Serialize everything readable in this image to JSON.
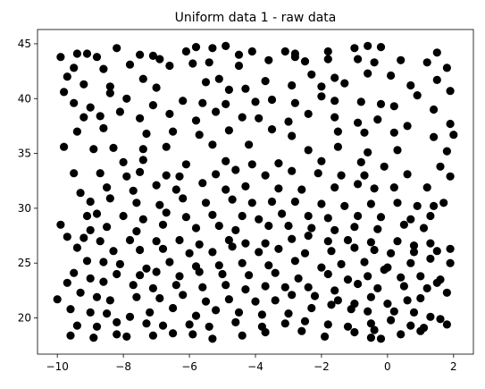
{
  "chart_data": {
    "type": "scatter",
    "title": "Uniform data 1 - raw data",
    "xlabel": "",
    "ylabel": "",
    "xlim": [
      -10.6,
      2.6
    ],
    "ylim": [
      16.7,
      46.3
    ],
    "x_ticks": [
      -10,
      -8,
      -6,
      -4,
      -2,
      0,
      2
    ],
    "x_tick_labels": [
      "−10",
      "−8",
      "−6",
      "−4",
      "−2",
      "0",
      "2"
    ],
    "y_ticks": [
      20,
      25,
      30,
      35,
      40,
      45
    ],
    "y_tick_labels": [
      "20",
      "25",
      "30",
      "35",
      "40",
      "45"
    ],
    "grid": false,
    "marker_color": "#000000",
    "points": [
      [
        -9.9,
        43.8
      ],
      [
        -9.4,
        44.1
      ],
      [
        -9.1,
        44.1
      ],
      [
        -8.8,
        43.8
      ],
      [
        -8.2,
        44.6
      ],
      [
        -7.5,
        44.0
      ],
      [
        -7.1,
        43.9
      ],
      [
        -6.9,
        43.6
      ],
      [
        -6.1,
        44.3
      ],
      [
        -5.8,
        44.7
      ],
      [
        -5.3,
        44.6
      ],
      [
        -4.9,
        44.8
      ],
      [
        -4.5,
        44.0
      ],
      [
        -4.1,
        44.3
      ],
      [
        -3.1,
        44.3
      ],
      [
        -2.8,
        44.1
      ],
      [
        -1.8,
        44.3
      ],
      [
        -1.0,
        44.6
      ],
      [
        -0.6,
        44.8
      ],
      [
        -0.2,
        44.7
      ],
      [
        1.5,
        44.2
      ],
      [
        -9.7,
        42.0
      ],
      [
        -9.5,
        42.8
      ],
      [
        -8.6,
        42.7
      ],
      [
        -7.8,
        43.1
      ],
      [
        -6.6,
        43.0
      ],
      [
        -5.9,
        43.2
      ],
      [
        -5.4,
        43.3
      ],
      [
        -4.5,
        43.0
      ],
      [
        -3.6,
        43.5
      ],
      [
        -2.8,
        43.8
      ],
      [
        -2.5,
        43.4
      ],
      [
        -1.8,
        43.6
      ],
      [
        -0.9,
        43.6
      ],
      [
        -0.4,
        43.3
      ],
      [
        0.4,
        43.5
      ],
      [
        1.2,
        43.3
      ],
      [
        1.8,
        42.8
      ],
      [
        -9.8,
        40.6
      ],
      [
        -9.2,
        41.3
      ],
      [
        -8.4,
        41.1
      ],
      [
        -7.4,
        41.8
      ],
      [
        -7.0,
        41.0
      ],
      [
        -5.5,
        41.5
      ],
      [
        -5.1,
        41.8
      ],
      [
        -4.8,
        40.8
      ],
      [
        -4.3,
        40.9
      ],
      [
        -3.7,
        41.6
      ],
      [
        -2.9,
        41.2
      ],
      [
        -2.3,
        42.2
      ],
      [
        -2.0,
        41.1
      ],
      [
        -1.6,
        41.9
      ],
      [
        -1.3,
        41.4
      ],
      [
        -0.6,
        42.3
      ],
      [
        0.1,
        42.1
      ],
      [
        0.7,
        41.2
      ],
      [
        1.5,
        41.7
      ],
      [
        1.9,
        40.7
      ],
      [
        -9.5,
        39.6
      ],
      [
        -9.0,
        39.2
      ],
      [
        -8.4,
        40.5
      ],
      [
        -7.9,
        40.0
      ],
      [
        -7.1,
        39.4
      ],
      [
        -6.2,
        39.8
      ],
      [
        -5.6,
        39.6
      ],
      [
        -4.9,
        39.5
      ],
      [
        -4.0,
        39.7
      ],
      [
        -3.5,
        39.9
      ],
      [
        -2.8,
        39.6
      ],
      [
        -2.0,
        40.2
      ],
      [
        -1.6,
        39.8
      ],
      [
        -0.8,
        39.7
      ],
      [
        -0.2,
        39.5
      ],
      [
        0.2,
        39.3
      ],
      [
        0.9,
        40.3
      ],
      [
        1.4,
        39.0
      ],
      [
        -9.2,
        38.3
      ],
      [
        -8.7,
        38.4
      ],
      [
        -8.1,
        38.8
      ],
      [
        -7.5,
        38.2
      ],
      [
        -6.6,
        38.6
      ],
      [
        -5.8,
        38.0
      ],
      [
        -5.2,
        38.8
      ],
      [
        -4.4,
        38.3
      ],
      [
        -3.9,
        38.2
      ],
      [
        -3.0,
        37.9
      ],
      [
        -2.4,
        38.6
      ],
      [
        -1.6,
        38.3
      ],
      [
        -0.9,
        37.8
      ],
      [
        -0.3,
        38.1
      ],
      [
        0.6,
        37.5
      ],
      [
        1.9,
        37.7
      ],
      [
        -9.4,
        37.0
      ],
      [
        -8.6,
        37.3
      ],
      [
        -7.3,
        36.8
      ],
      [
        -6.5,
        37.0
      ],
      [
        -5.7,
        36.7
      ],
      [
        -4.8,
        37.1
      ],
      [
        -3.5,
        37.2
      ],
      [
        -2.9,
        36.6
      ],
      [
        -1.5,
        37.0
      ],
      [
        -0.7,
        36.9
      ],
      [
        0.2,
        36.9
      ],
      [
        1.4,
        36.5
      ],
      [
        2.0,
        36.7
      ],
      [
        -9.8,
        35.6
      ],
      [
        -8.9,
        35.4
      ],
      [
        -8.3,
        35.5
      ],
      [
        -7.4,
        35.4
      ],
      [
        -6.7,
        35.6
      ],
      [
        -5.3,
        35.8
      ],
      [
        -4.2,
        35.8
      ],
      [
        -2.4,
        35.3
      ],
      [
        -1.5,
        35.6
      ],
      [
        -0.6,
        35.1
      ],
      [
        0.3,
        35.3
      ],
      [
        1.8,
        35.2
      ],
      [
        -8.0,
        34.2
      ],
      [
        -7.4,
        34.4
      ],
      [
        -6.1,
        34.0
      ],
      [
        -4.9,
        34.3
      ],
      [
        -4.1,
        34.0
      ],
      [
        -3.3,
        34.1
      ],
      [
        -2.0,
        34.3
      ],
      [
        -0.8,
        34.2
      ],
      [
        -0.1,
        33.8
      ],
      [
        1.6,
        33.8
      ],
      [
        -9.5,
        33.2
      ],
      [
        -8.7,
        33.2
      ],
      [
        -7.9,
        32.9
      ],
      [
        -7.5,
        33.3
      ],
      [
        -6.7,
        33.0
      ],
      [
        -6.3,
        32.9
      ],
      [
        -5.2,
        33.1
      ],
      [
        -4.6,
        33.5
      ],
      [
        -3.7,
        33.0
      ],
      [
        -2.9,
        33.4
      ],
      [
        -2.1,
        33.2
      ],
      [
        -1.4,
        33.0
      ],
      [
        -0.7,
        33.0
      ],
      [
        0.6,
        33.1
      ],
      [
        1.9,
        32.9
      ],
      [
        -9.3,
        31.4
      ],
      [
        -8.5,
        31.9
      ],
      [
        -7.7,
        31.6
      ],
      [
        -7.0,
        32.1
      ],
      [
        -6.4,
        31.7
      ],
      [
        -5.6,
        32.3
      ],
      [
        -4.9,
        31.7
      ],
      [
        -4.3,
        32.0
      ],
      [
        -3.3,
        31.8
      ],
      [
        -2.6,
        31.7
      ],
      [
        -1.6,
        31.9
      ],
      [
        -0.9,
        32.2
      ],
      [
        -0.4,
        31.8
      ],
      [
        0.2,
        31.9
      ],
      [
        1.2,
        31.9
      ],
      [
        -9.0,
        30.6
      ],
      [
        -8.4,
        30.9
      ],
      [
        -7.6,
        30.5
      ],
      [
        -6.9,
        30.3
      ],
      [
        -6.2,
        30.9
      ],
      [
        -5.5,
        30.5
      ],
      [
        -4.7,
        30.8
      ],
      [
        -4.1,
        30.5
      ],
      [
        -3.5,
        30.6
      ],
      [
        -2.8,
        30.6
      ],
      [
        -2.0,
        30.4
      ],
      [
        -1.3,
        30.2
      ],
      [
        -0.5,
        30.4
      ],
      [
        0.3,
        30.5
      ],
      [
        0.9,
        30.2
      ],
      [
        1.4,
        30.2
      ],
      [
        1.7,
        30.5
      ],
      [
        -9.1,
        29.3
      ],
      [
        -8.8,
        29.5
      ],
      [
        -8.0,
        29.3
      ],
      [
        -7.4,
        29.0
      ],
      [
        -6.7,
        29.6
      ],
      [
        -6.1,
        29.2
      ],
      [
        -5.3,
        29.4
      ],
      [
        -4.4,
        29.3
      ],
      [
        -3.9,
        29.0
      ],
      [
        -3.2,
        29.5
      ],
      [
        -2.4,
        29.3
      ],
      [
        -1.8,
        29.1
      ],
      [
        -0.9,
        29.3
      ],
      [
        -0.2,
        29.2
      ],
      [
        0.7,
        29.0
      ],
      [
        1.3,
        29.3
      ],
      [
        -9.9,
        28.5
      ],
      [
        -9.0,
        28.0
      ],
      [
        -8.5,
        28.3
      ],
      [
        -7.6,
        27.9
      ],
      [
        -6.8,
        28.5
      ],
      [
        -5.8,
        28.2
      ],
      [
        -5.1,
        28.4
      ],
      [
        -4.6,
        28.0
      ],
      [
        -3.6,
        28.4
      ],
      [
        -3.0,
        28.4
      ],
      [
        -2.3,
        28.2
      ],
      [
        -1.6,
        28.0
      ],
      [
        -1.0,
        28.3
      ],
      [
        -0.3,
        28.1
      ],
      [
        0.5,
        28.5
      ],
      [
        1.1,
        28.2
      ],
      [
        -9.7,
        27.4
      ],
      [
        -9.2,
        27.3
      ],
      [
        -8.7,
        27.0
      ],
      [
        -7.8,
        27.1
      ],
      [
        -7.0,
        27.0
      ],
      [
        -6.3,
        27.1
      ],
      [
        -5.7,
        26.7
      ],
      [
        -4.8,
        27.1
      ],
      [
        -4.3,
        26.8
      ],
      [
        -3.7,
        26.8
      ],
      [
        -2.9,
        27.2
      ],
      [
        -2.4,
        27.5
      ],
      [
        -1.8,
        27.0
      ],
      [
        -1.2,
        27.1
      ],
      [
        -0.5,
        26.9
      ],
      [
        0.3,
        27.0
      ],
      [
        0.8,
        26.6
      ],
      [
        1.3,
        26.8
      ],
      [
        -9.4,
        26.4
      ],
      [
        -8.3,
        26.1
      ],
      [
        -7.5,
        26.2
      ],
      [
        -6.8,
        26.3
      ],
      [
        -6.0,
        25.9
      ],
      [
        -5.3,
        26.0
      ],
      [
        -4.7,
        26.5
      ],
      [
        -3.9,
        26.0
      ],
      [
        -3.3,
        26.3
      ],
      [
        -2.5,
        25.9
      ],
      [
        -1.7,
        26.1
      ],
      [
        -1.0,
        26.4
      ],
      [
        -0.4,
        26.2
      ],
      [
        0.1,
        25.9
      ],
      [
        0.8,
        26.0
      ],
      [
        1.5,
        26.1
      ],
      [
        1.9,
        26.3
      ],
      [
        -9.1,
        25.2
      ],
      [
        -8.6,
        25.1
      ],
      [
        -8.1,
        24.9
      ],
      [
        -7.3,
        24.5
      ],
      [
        -6.6,
        25.1
      ],
      [
        -5.8,
        24.7
      ],
      [
        -5.1,
        24.8
      ],
      [
        -4.4,
        25.0
      ],
      [
        -3.6,
        24.8
      ],
      [
        -2.8,
        25.2
      ],
      [
        -2.0,
        24.6
      ],
      [
        -1.4,
        24.9
      ],
      [
        -0.7,
        25.1
      ],
      [
        0.0,
        24.6
      ],
      [
        0.7,
        25.0
      ],
      [
        1.3,
        25.4
      ],
      [
        1.9,
        25.0
      ],
      [
        -9.5,
        24.1
      ],
      [
        -8.2,
        24.0
      ],
      [
        -7.5,
        23.9
      ],
      [
        -7.0,
        24.2
      ],
      [
        -6.3,
        23.8
      ],
      [
        -5.7,
        24.2
      ],
      [
        -5.0,
        24.0
      ],
      [
        -4.2,
        23.9
      ],
      [
        -3.4,
        24.1
      ],
      [
        -2.7,
        23.6
      ],
      [
        -1.8,
        24.0
      ],
      [
        -1.2,
        23.5
      ],
      [
        -0.6,
        23.8
      ],
      [
        -0.1,
        24.4
      ],
      [
        0.4,
        23.7
      ],
      [
        1.0,
        23.8
      ],
      [
        1.6,
        23.5
      ],
      [
        -9.7,
        23.2
      ],
      [
        -9.0,
        23.6
      ],
      [
        -8.6,
        23.3
      ],
      [
        -7.7,
        23.0
      ],
      [
        -7.1,
        22.7
      ],
      [
        -6.4,
        23.0
      ],
      [
        -5.6,
        22.8
      ],
      [
        -4.9,
        23.0
      ],
      [
        -4.3,
        22.6
      ],
      [
        -3.7,
        22.9
      ],
      [
        -3.1,
        22.8
      ],
      [
        -2.4,
        22.8
      ],
      [
        -1.6,
        22.5
      ],
      [
        -0.9,
        23.1
      ],
      [
        -0.3,
        22.7
      ],
      [
        0.5,
        22.9
      ],
      [
        1.2,
        22.7
      ],
      [
        1.5,
        23.2
      ],
      [
        -10.0,
        21.7
      ],
      [
        -9.3,
        22.3
      ],
      [
        -8.8,
        21.9
      ],
      [
        -8.4,
        21.6
      ],
      [
        -7.6,
        21.9
      ],
      [
        -6.9,
        21.8
      ],
      [
        -6.2,
        22.1
      ],
      [
        -5.5,
        21.5
      ],
      [
        -4.8,
        21.7
      ],
      [
        -4.0,
        21.5
      ],
      [
        -3.4,
        21.6
      ],
      [
        -2.9,
        22.1
      ],
      [
        -2.2,
        22.0
      ],
      [
        -1.5,
        21.6
      ],
      [
        -1.0,
        21.3
      ],
      [
        -0.5,
        21.9
      ],
      [
        0.0,
        21.3
      ],
      [
        0.6,
        21.6
      ],
      [
        1.0,
        21.8
      ],
      [
        1.8,
        22.3
      ],
      [
        -9.6,
        20.8
      ],
      [
        -9.0,
        20.5
      ],
      [
        -8.5,
        20.4
      ],
      [
        -7.8,
        20.1
      ],
      [
        -7.2,
        20.5
      ],
      [
        -6.5,
        20.9
      ],
      [
        -5.8,
        20.2
      ],
      [
        -5.2,
        20.7
      ],
      [
        -4.5,
        20.5
      ],
      [
        -3.8,
        20.3
      ],
      [
        -3.0,
        20.4
      ],
      [
        -2.3,
        20.9
      ],
      [
        -1.7,
        21.2
      ],
      [
        -1.1,
        20.8
      ],
      [
        -0.6,
        20.6
      ],
      [
        0.2,
        20.6
      ],
      [
        0.8,
        20.5
      ],
      [
        1.3,
        20.1
      ],
      [
        1.6,
        19.9
      ],
      [
        -9.4,
        19.3
      ],
      [
        -8.8,
        19.2
      ],
      [
        -8.2,
        19.6
      ],
      [
        -7.3,
        19.5
      ],
      [
        -6.8,
        19.3
      ],
      [
        -6.0,
        19.4
      ],
      [
        -5.4,
        19.2
      ],
      [
        -4.6,
        19.6
      ],
      [
        -3.8,
        19.2
      ],
      [
        -3.1,
        19.5
      ],
      [
        -2.5,
        19.7
      ],
      [
        -1.8,
        19.4
      ],
      [
        -1.2,
        19.2
      ],
      [
        -0.5,
        19.5
      ],
      [
        0.1,
        19.8
      ],
      [
        0.7,
        19.3
      ],
      [
        1.1,
        19.1
      ],
      [
        1.8,
        19.4
      ],
      [
        -9.6,
        18.4
      ],
      [
        -8.9,
        18.2
      ],
      [
        -8.2,
        18.5
      ],
      [
        -7.9,
        18.3
      ],
      [
        -7.1,
        18.4
      ],
      [
        -6.5,
        18.6
      ],
      [
        -5.9,
        18.5
      ],
      [
        -5.3,
        18.1
      ],
      [
        -4.4,
        18.4
      ],
      [
        -3.7,
        18.7
      ],
      [
        -2.6,
        18.8
      ],
      [
        -1.9,
        18.3
      ],
      [
        -1.0,
        18.7
      ],
      [
        -0.5,
        18.2
      ],
      [
        -0.4,
        18.9
      ],
      [
        -0.2,
        18.1
      ],
      [
        0.4,
        18.5
      ],
      [
        1.0,
        18.8
      ]
    ]
  }
}
